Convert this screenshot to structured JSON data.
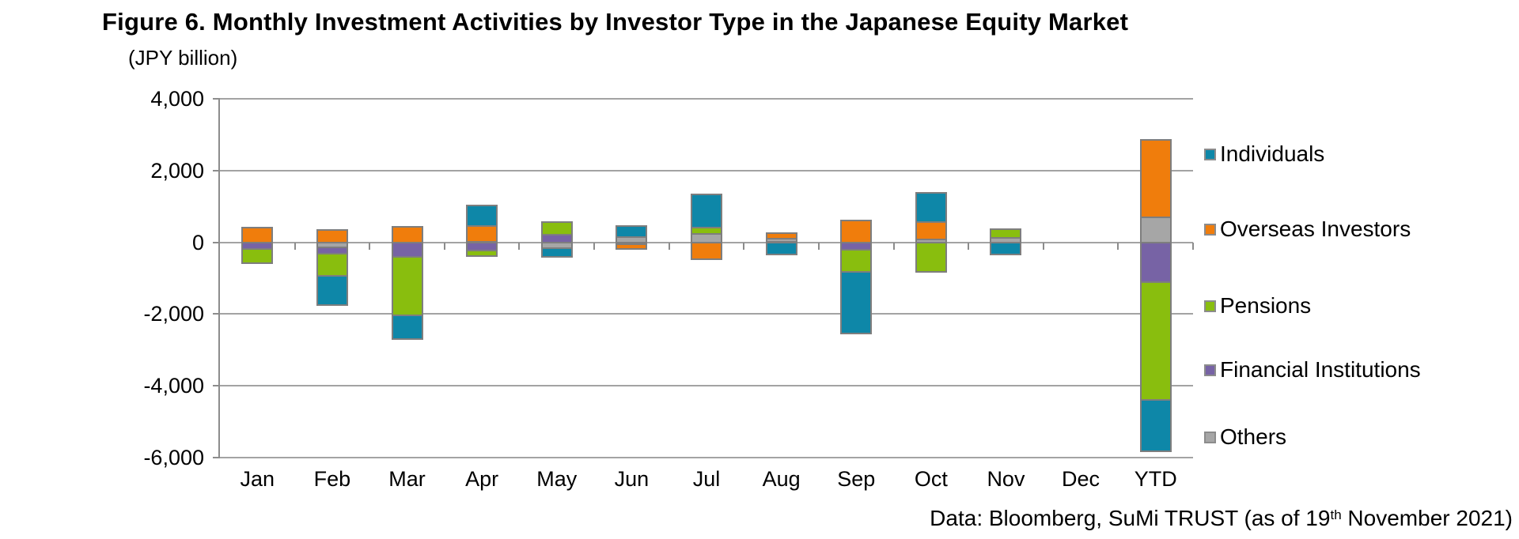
{
  "title": "Figure 6. Monthly Investment Activities by Investor Type in the Japanese Equity Market",
  "axis_note": "(JPY billion)",
  "footer": {
    "prefix": "Data: Bloomberg, SuMi TRUST (as of 19",
    "superscript": "th",
    "suffix": " November 2021)"
  },
  "chart_data": {
    "type": "bar",
    "subtype": "stacked-column",
    "title": "Figure 6. Monthly Investment Activities by Investor Type in the Japanese Equity Market",
    "ylabel": "(JPY billion)",
    "ylim": [
      -6000,
      4000
    ],
    "grid": "horizontal-major",
    "legend_position": "right",
    "yticks": [
      {
        "value": 4000,
        "label": "4,000"
      },
      {
        "value": 2000,
        "label": "2,000"
      },
      {
        "value": 0,
        "label": "0"
      },
      {
        "value": -2000,
        "label": "-2,000"
      },
      {
        "value": -4000,
        "label": "-4,000"
      },
      {
        "value": -6000,
        "label": "-6,000"
      }
    ],
    "categories": [
      "Jan",
      "Feb",
      "Mar",
      "Apr",
      "May",
      "Jun",
      "Jul",
      "Aug",
      "Sep",
      "Oct",
      "Nov",
      "Dec",
      "YTD"
    ],
    "series": [
      {
        "key": "individuals",
        "name": "Individuals",
        "color": "#0e87a8"
      },
      {
        "key": "overseas",
        "name": "Overseas Investors",
        "color": "#f07d0c"
      },
      {
        "key": "pensions",
        "name": "Pensions",
        "color": "#89be0e"
      },
      {
        "key": "financial",
        "name": "Financial Institutions",
        "color": "#7763a5"
      },
      {
        "key": "others",
        "name": "Others",
        "color": "#a6a6a6"
      }
    ],
    "months": [
      {
        "month": "Jan",
        "positive": [
          {
            "series": "overseas",
            "value": 450
          }
        ],
        "negative": [
          {
            "series": "financial",
            "value": -180
          },
          {
            "series": "pensions",
            "value": -400
          }
        ]
      },
      {
        "month": "Feb",
        "positive": [
          {
            "series": "overseas",
            "value": 380
          }
        ],
        "negative": [
          {
            "series": "others",
            "value": -150
          },
          {
            "series": "financial",
            "value": -170
          },
          {
            "series": "pensions",
            "value": -620
          },
          {
            "series": "individuals",
            "value": -820
          }
        ]
      },
      {
        "month": "Mar",
        "positive": [
          {
            "series": "overseas",
            "value": 470
          }
        ],
        "negative": [
          {
            "series": "financial",
            "value": -410
          },
          {
            "series": "pensions",
            "value": -1630
          },
          {
            "series": "individuals",
            "value": -650
          }
        ]
      },
      {
        "month": "Apr",
        "positive": [
          {
            "series": "others",
            "value": 50
          },
          {
            "series": "overseas",
            "value": 440
          },
          {
            "series": "individuals",
            "value": 590
          }
        ],
        "negative": [
          {
            "series": "financial",
            "value": -220
          },
          {
            "series": "pensions",
            "value": -170
          }
        ]
      },
      {
        "month": "May",
        "positive": [
          {
            "series": "financial",
            "value": 250
          },
          {
            "series": "pensions",
            "value": 350
          }
        ],
        "negative": [
          {
            "series": "others",
            "value": -170
          },
          {
            "series": "individuals",
            "value": -230
          }
        ]
      },
      {
        "month": "Jun",
        "positive": [
          {
            "series": "others",
            "value": 200
          },
          {
            "series": "individuals",
            "value": 300
          }
        ],
        "negative": [
          {
            "series": "financial",
            "value": -50
          },
          {
            "series": "overseas",
            "value": -130
          }
        ]
      },
      {
        "month": "Jul",
        "positive": [
          {
            "series": "others",
            "value": 270
          },
          {
            "series": "pensions",
            "value": 180
          },
          {
            "series": "individuals",
            "value": 920
          }
        ],
        "negative": [
          {
            "series": "overseas",
            "value": -480
          }
        ]
      },
      {
        "month": "Aug",
        "positive": [
          {
            "series": "financial",
            "value": 50
          },
          {
            "series": "others",
            "value": 100
          },
          {
            "series": "overseas",
            "value": 150
          }
        ],
        "negative": [
          {
            "series": "individuals",
            "value": -350
          }
        ]
      },
      {
        "month": "Sep",
        "positive": [
          {
            "series": "overseas",
            "value": 650
          }
        ],
        "negative": [
          {
            "series": "financial",
            "value": -200
          },
          {
            "series": "pensions",
            "value": -620
          },
          {
            "series": "individuals",
            "value": -1730
          }
        ]
      },
      {
        "month": "Oct",
        "positive": [
          {
            "series": "others",
            "value": 130
          },
          {
            "series": "overseas",
            "value": 480
          },
          {
            "series": "individuals",
            "value": 820
          }
        ],
        "negative": [
          {
            "series": "pensions",
            "value": -820
          }
        ]
      },
      {
        "month": "Nov",
        "positive": [
          {
            "series": "others",
            "value": 160
          },
          {
            "series": "pensions",
            "value": 260
          }
        ],
        "negative": [
          {
            "series": "individuals",
            "value": -350
          }
        ]
      },
      {
        "month": "Dec",
        "positive": [],
        "negative": []
      },
      {
        "month": "YTD",
        "positive": [
          {
            "series": "others",
            "value": 730
          },
          {
            "series": "overseas",
            "value": 2160
          }
        ],
        "negative": [
          {
            "series": "financial",
            "value": -1100
          },
          {
            "series": "pensions",
            "value": -3300
          },
          {
            "series": "individuals",
            "value": -1430
          }
        ]
      }
    ],
    "source": "Data: Bloomberg, SuMi TRUST (as of 19th November 2021)"
  }
}
